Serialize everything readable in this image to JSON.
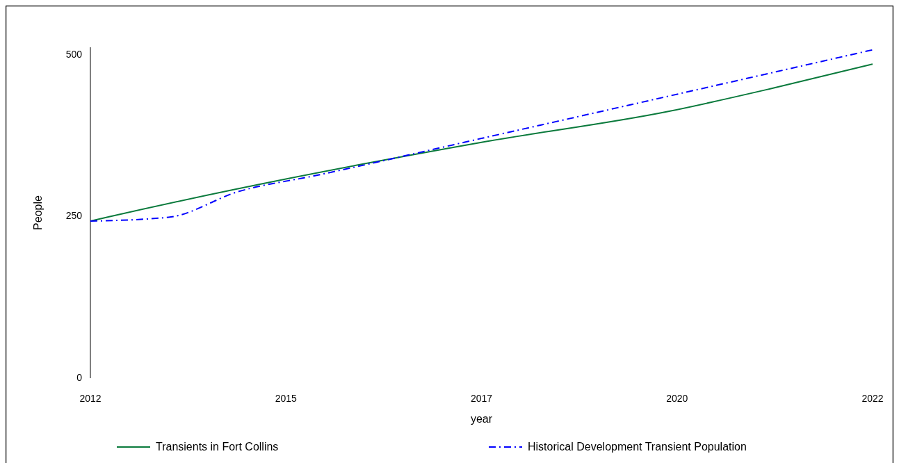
{
  "chart_data": {
    "type": "line",
    "xlabel": "year",
    "ylabel": "People",
    "xlim": [
      2012,
      2022
    ],
    "xticks": [
      2012,
      {
        "value": 2014.5,
        "label": "2015"
      },
      2017,
      {
        "value": 2019.5,
        "label": "2020"
      },
      2022
    ],
    "ylim": [
      0,
      512
    ],
    "yticks": [
      0,
      250,
      500
    ],
    "grid": false,
    "legend": "bottom",
    "series": [
      {
        "name": "Transients in Fort Collins",
        "color": "#0a7a3c",
        "line_style": "solid",
        "x": [
          2012,
          2012.25,
          2017,
          2019.4,
          2020.7,
          2022
        ],
        "values": [
          243,
          250,
          365,
          413,
          448,
          486
        ]
      },
      {
        "name": "Historical Development Transient Population",
        "color": "#0000ff",
        "line_style": "dashdot",
        "x": [
          2012,
          2013,
          2013.9,
          2014.9,
          2017,
          2022
        ],
        "values": [
          243,
          249,
          289,
          314,
          371,
          508
        ]
      }
    ]
  }
}
